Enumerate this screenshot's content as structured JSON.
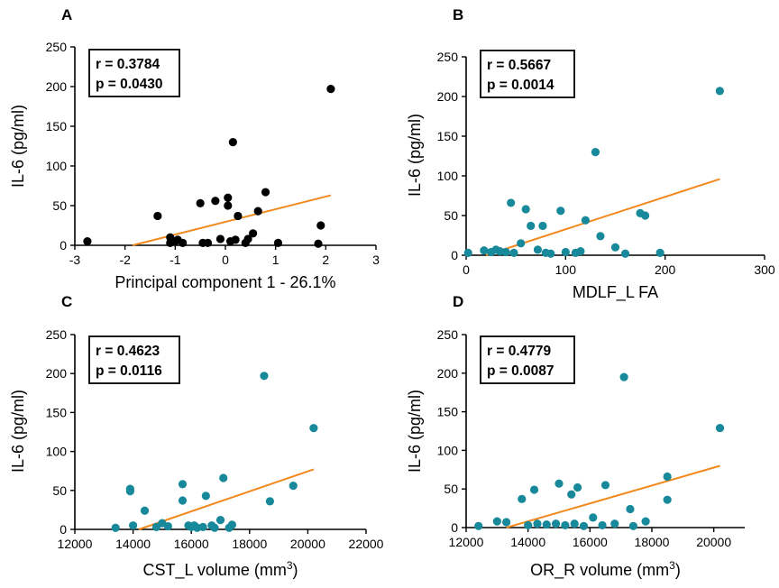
{
  "colors": {
    "axis": "#000000",
    "fit_line": "#f2891e",
    "panel_a_points": "#000000",
    "panel_bcd_points": "#17899a"
  },
  "chart_data": [
    {
      "panel": "A",
      "type": "scatter",
      "xlabel": "Principal component 1 - 26.1%",
      "ylabel": "IL-6 (pg/ml)",
      "xlim": [
        -3,
        3
      ],
      "ylim": [
        0,
        250
      ],
      "xticks": [
        "-3",
        "-2",
        "-1",
        "0",
        "1",
        "2",
        "3"
      ],
      "yticks": [
        "0",
        "50",
        "100",
        "150",
        "200",
        "250"
      ],
      "stats": {
        "r": "r  = 0.3784",
        "p": "p = 0.0430"
      },
      "fit": [
        [
          -1.85,
          0
        ],
        [
          2.1,
          63
        ]
      ],
      "points": [
        [
          -2.75,
          5
        ],
        [
          -1.35,
          37
        ],
        [
          -1.1,
          10
        ],
        [
          -1.1,
          3
        ],
        [
          -1.0,
          5
        ],
        [
          -0.95,
          7
        ],
        [
          -0.85,
          3
        ],
        [
          -0.5,
          53
        ],
        [
          -0.45,
          3
        ],
        [
          -0.35,
          3
        ],
        [
          -0.2,
          56
        ],
        [
          -0.1,
          8
        ],
        [
          0.05,
          60
        ],
        [
          0.05,
          50
        ],
        [
          0.1,
          5
        ],
        [
          0.15,
          130
        ],
        [
          0.2,
          7
        ],
        [
          0.25,
          37
        ],
        [
          0.4,
          3
        ],
        [
          0.45,
          8
        ],
        [
          0.55,
          15
        ],
        [
          0.65,
          43
        ],
        [
          0.8,
          67
        ],
        [
          1.05,
          3
        ],
        [
          1.85,
          2
        ],
        [
          1.9,
          25
        ],
        [
          2.1,
          197
        ]
      ]
    },
    {
      "panel": "B",
      "type": "scatter",
      "xlabel": "MDLF_L FA",
      "ylabel": "IL-6 (pg/ml)",
      "xlim": [
        0,
        300
      ],
      "ylim": [
        0,
        250
      ],
      "xticks": [
        "0",
        "100",
        "200",
        "300"
      ],
      "yticks": [
        "0",
        "50",
        "100",
        "150",
        "200",
        "250"
      ],
      "stats": {
        "r": "r = 0.5667",
        "p": "p = 0.0014"
      },
      "fit": [
        [
          20,
          0
        ],
        [
          255,
          96
        ]
      ],
      "points": [
        [
          2,
          3
        ],
        [
          18,
          6
        ],
        [
          25,
          4
        ],
        [
          30,
          7
        ],
        [
          34,
          5
        ],
        [
          40,
          4
        ],
        [
          45,
          66
        ],
        [
          48,
          3
        ],
        [
          55,
          15
        ],
        [
          60,
          58
        ],
        [
          65,
          37
        ],
        [
          72,
          7
        ],
        [
          77,
          37
        ],
        [
          80,
          3
        ],
        [
          85,
          2
        ],
        [
          95,
          56
        ],
        [
          100,
          4
        ],
        [
          110,
          3
        ],
        [
          115,
          5
        ],
        [
          120,
          44
        ],
        [
          130,
          130
        ],
        [
          135,
          24
        ],
        [
          150,
          10
        ],
        [
          160,
          2
        ],
        [
          175,
          53
        ],
        [
          180,
          50
        ],
        [
          195,
          3
        ],
        [
          255,
          207
        ]
      ]
    },
    {
      "panel": "C",
      "type": "scatter",
      "xlabel": "CST_L volume (mm",
      "xlabel_sup": "3",
      "xlabel_end": ")",
      "ylabel": "IL-6 (pg/ml)",
      "xlim": [
        12000,
        22000
      ],
      "ylim": [
        0,
        250
      ],
      "xticks": [
        "12000",
        "14000",
        "16000",
        "18000",
        "20000",
        "22000"
      ],
      "yticks": [
        "0",
        "50",
        "100",
        "150",
        "200",
        "250"
      ],
      "stats": {
        "r": "r = 0.4623",
        "p": "p = 0.0116"
      },
      "fit": [
        [
          14200,
          0
        ],
        [
          20200,
          77
        ]
      ],
      "points": [
        [
          13400,
          2
        ],
        [
          13900,
          52
        ],
        [
          13900,
          49
        ],
        [
          14000,
          5
        ],
        [
          14400,
          24
        ],
        [
          14800,
          3
        ],
        [
          15000,
          8
        ],
        [
          15200,
          4
        ],
        [
          15700,
          58
        ],
        [
          15700,
          37
        ],
        [
          15900,
          5
        ],
        [
          16000,
          3
        ],
        [
          16100,
          5
        ],
        [
          16200,
          2
        ],
        [
          16400,
          3
        ],
        [
          16500,
          43
        ],
        [
          16700,
          5
        ],
        [
          16800,
          2
        ],
        [
          17000,
          12
        ],
        [
          17100,
          66
        ],
        [
          17300,
          2
        ],
        [
          17400,
          6
        ],
        [
          18500,
          197
        ],
        [
          18700,
          36
        ],
        [
          19500,
          56
        ],
        [
          20200,
          130
        ]
      ]
    },
    {
      "panel": "D",
      "type": "scatter",
      "xlabel": "OR_R volume (mm",
      "xlabel_sup": "3",
      "xlabel_end": ")",
      "ylabel": "IL-6 (pg/ml)",
      "xlim": [
        12000,
        21000
      ],
      "ylim": [
        0,
        250
      ],
      "xticks": [
        "12000",
        "14000",
        "16000",
        "18000",
        "20000"
      ],
      "yticks": [
        "0",
        "50",
        "100",
        "150",
        "200",
        "250"
      ],
      "stats": {
        "r": "r = 0.4779",
        "p": "p = 0.0087"
      },
      "fit": [
        [
          13300,
          0
        ],
        [
          20200,
          80
        ]
      ],
      "points": [
        [
          12400,
          2
        ],
        [
          13000,
          8
        ],
        [
          13300,
          7
        ],
        [
          13800,
          37
        ],
        [
          14000,
          3
        ],
        [
          14200,
          49
        ],
        [
          14300,
          5
        ],
        [
          14600,
          4
        ],
        [
          14900,
          5
        ],
        [
          15000,
          57
        ],
        [
          15200,
          3
        ],
        [
          15400,
          43
        ],
        [
          15500,
          5
        ],
        [
          15600,
          52
        ],
        [
          15800,
          2
        ],
        [
          16100,
          13
        ],
        [
          16400,
          3
        ],
        [
          16500,
          55
        ],
        [
          16800,
          5
        ],
        [
          17100,
          195
        ],
        [
          17300,
          24
        ],
        [
          17400,
          2
        ],
        [
          17800,
          8
        ],
        [
          18500,
          66
        ],
        [
          18500,
          36
        ],
        [
          20200,
          129
        ]
      ]
    }
  ]
}
